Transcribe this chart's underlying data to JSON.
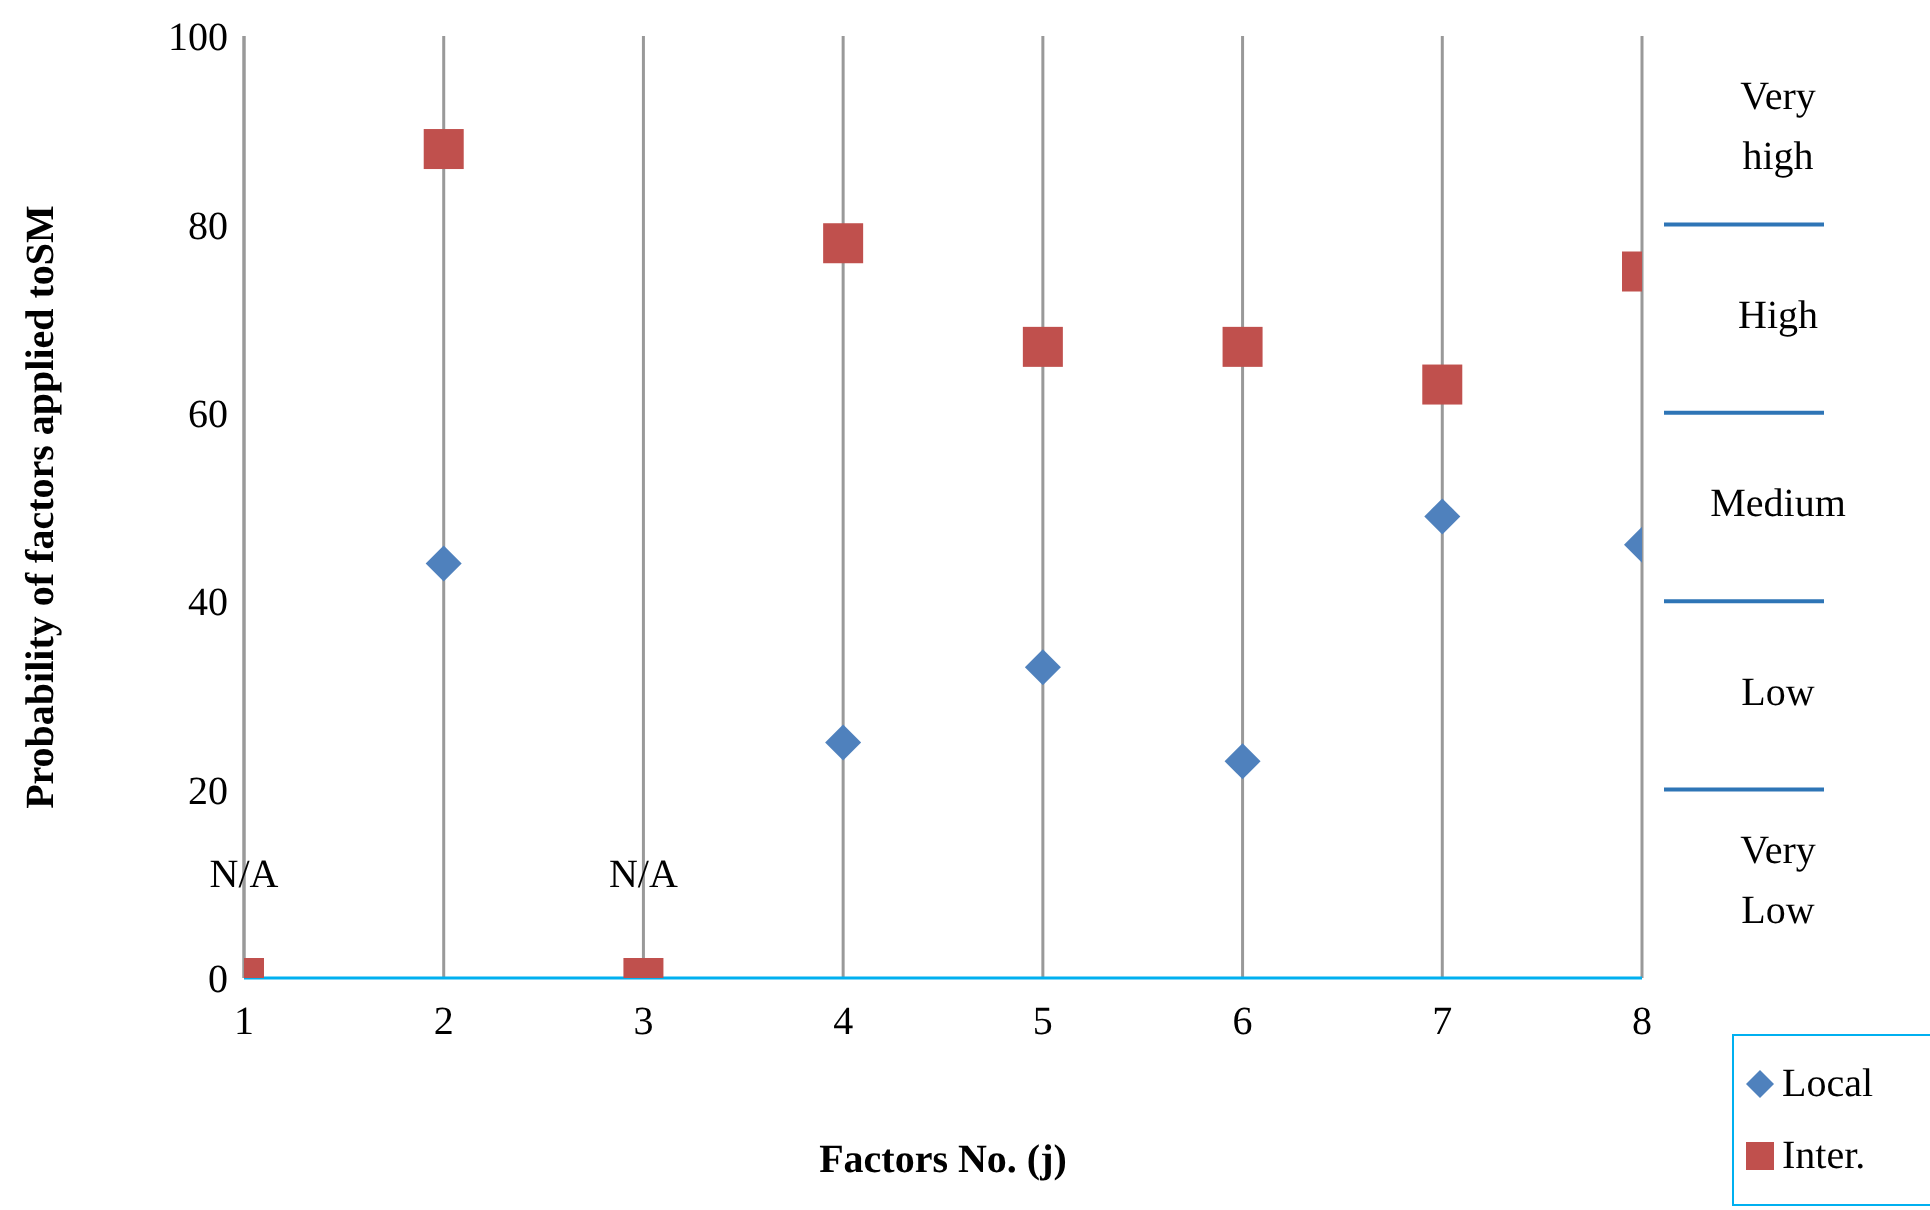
{
  "chart_data": {
    "type": "scatter",
    "xlabel": "Factors No. (j)",
    "ylabel": "Probability of factors applied toSM",
    "x": [
      1,
      2,
      3,
      4,
      5,
      6,
      7,
      8
    ],
    "series": [
      {
        "name": "Local",
        "color": "#4f81bd",
        "marker": "diamond",
        "values": [
          null,
          44,
          null,
          25,
          33,
          23,
          49,
          46
        ]
      },
      {
        "name": "Inter.",
        "color": "#c0504d",
        "marker": "square",
        "values": [
          0,
          88,
          0,
          78,
          67,
          67,
          63,
          75
        ]
      }
    ],
    "xlim": [
      1,
      8
    ],
    "xticks": [
      1,
      2,
      3,
      4,
      5,
      6,
      7,
      8
    ],
    "ylim": [
      0,
      100
    ],
    "yticks": [
      0,
      20,
      40,
      60,
      80,
      100
    ],
    "grid": "x",
    "legend": "bottom right",
    "annotations": [
      {
        "text": "N/A",
        "x": 1,
        "y": 0
      },
      {
        "text": "N/A",
        "x": 3,
        "y": 0
      },
      "Very high",
      "High",
      "Medium",
      "Low",
      "Very Low"
    ]
  }
}
